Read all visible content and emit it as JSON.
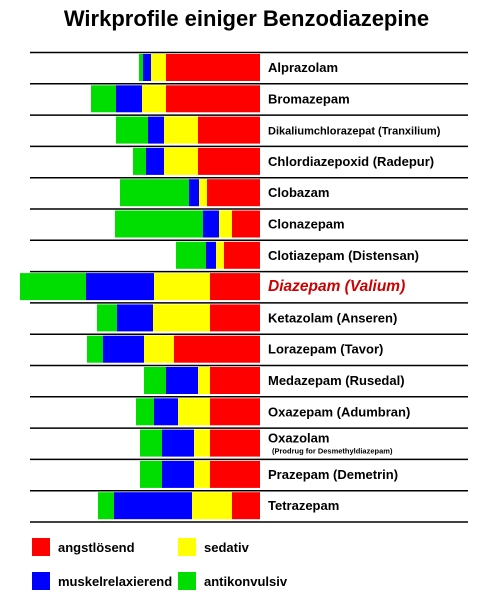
{
  "chart_data": {
    "type": "bar",
    "title": "Wirkprofile einiger Benzodiazepine",
    "xlabel": "",
    "ylabel": "",
    "stack_order_right_to_left": [
      "angstlösend",
      "sedativ",
      "muskelrelaxierend",
      "antikonvulsiv"
    ],
    "series": [
      {
        "name": "angstlösend",
        "color": "#ff0000"
      },
      {
        "name": "sedativ",
        "color": "#ffff00"
      },
      {
        "name": "muskelrelaxierend",
        "color": "#0000ff"
      },
      {
        "name": "antikonvulsiv",
        "color": "#00dd00"
      }
    ],
    "drugs": [
      {
        "name": "Alprazolam",
        "values": [
          94,
          15,
          8,
          4
        ]
      },
      {
        "name": "Bromazepam",
        "values": [
          94,
          24,
          26,
          25
        ]
      },
      {
        "name": "Dikaliumchlorazepat (Tranxilium)",
        "values": [
          62,
          34,
          16,
          32
        ]
      },
      {
        "name": "Chlordiazepoxid (Radepur)",
        "values": [
          62,
          34,
          18,
          13
        ]
      },
      {
        "name": "Clobazam",
        "values": [
          53,
          8,
          10,
          69
        ]
      },
      {
        "name": "Clonazepam",
        "values": [
          28,
          13,
          16,
          88
        ]
      },
      {
        "name": "Clotiazepam (Distensan)",
        "values": [
          36,
          8,
          10,
          30
        ]
      },
      {
        "name": "Diazepam (Valium)",
        "values": [
          50,
          56,
          68,
          66
        ],
        "highlight": true
      },
      {
        "name": "Ketazolam (Anseren)",
        "values": [
          50,
          57,
          36,
          20
        ]
      },
      {
        "name": "Lorazepam (Tavor)",
        "values": [
          86,
          30,
          41,
          16
        ]
      },
      {
        "name": "Medazepam (Rusedal)",
        "values": [
          50,
          12,
          32,
          22
        ]
      },
      {
        "name": "Oxazepam (Adumbran)",
        "values": [
          50,
          32,
          24,
          18
        ]
      },
      {
        "name": "Oxazolam",
        "subtitle": "(Prodrug for Desmethyldiazepam)",
        "values": [
          50,
          16,
          32,
          22
        ]
      },
      {
        "name": "Prazepam (Demetrin)",
        "values": [
          50,
          16,
          32,
          22
        ]
      },
      {
        "name": "Tetrazepam",
        "values": [
          28,
          40,
          78,
          16
        ]
      }
    ]
  },
  "legend": [
    {
      "label": "angstlösend",
      "color": "#ff0000"
    },
    {
      "label": "sedativ",
      "color": "#ffff00"
    },
    {
      "label": "muskelrelaxierend",
      "color": "#0000ff"
    },
    {
      "label": "antikonvulsiv",
      "color": "#00dd00"
    }
  ],
  "highlight_color": "#cc0000"
}
